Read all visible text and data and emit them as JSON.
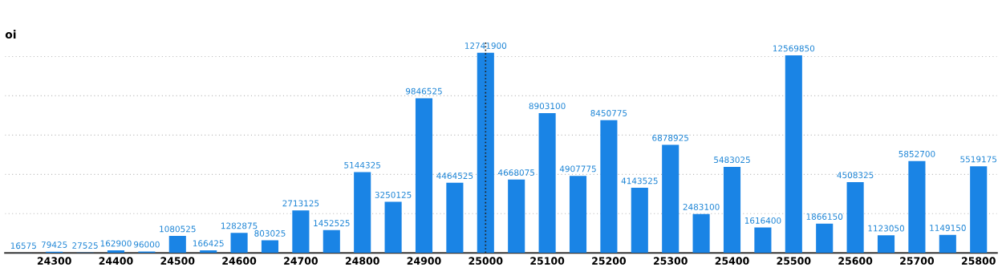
{
  "chart_data": {
    "type": "bar",
    "ylabel": "oi",
    "categories": [
      null,
      "24300",
      null,
      "24400",
      null,
      "24500",
      null,
      "24600",
      null,
      "24700",
      null,
      "24800",
      null,
      "24900",
      null,
      "25000",
      null,
      "25100",
      null,
      "25200",
      null,
      "25300",
      null,
      "25400",
      null,
      "25500",
      null,
      "25600",
      null,
      "25700",
      null,
      "25800"
    ],
    "values": [
      16575,
      79425,
      27525,
      162900,
      96000,
      1080525,
      166425,
      1282875,
      803025,
      2713125,
      1452525,
      5144325,
      3250125,
      9846525,
      4464525,
      12741900,
      4668075,
      8903100,
      4907775,
      8450775,
      4143525,
      6878925,
      2483100,
      5483025,
      1616400,
      12569850,
      1866150,
      4508325,
      1123050,
      5852700,
      1149150,
      5519175
    ],
    "color": "#1a84e5",
    "data_labels": true,
    "ylim": [
      0,
      13500000
    ],
    "yticks": [
      {
        "value": 2500000,
        "label": null
      },
      {
        "value": 5000000,
        "label": null
      },
      {
        "value": 7500000,
        "label": null
      },
      {
        "value": 10000000,
        "label": null
      },
      {
        "value": 12500000,
        "label": null
      }
    ],
    "tick_labels": "x",
    "grid": "y",
    "ref_lines": [
      {
        "axis": "x",
        "value": "25000",
        "color": "#222222",
        "line_style": "dotted"
      }
    ]
  }
}
